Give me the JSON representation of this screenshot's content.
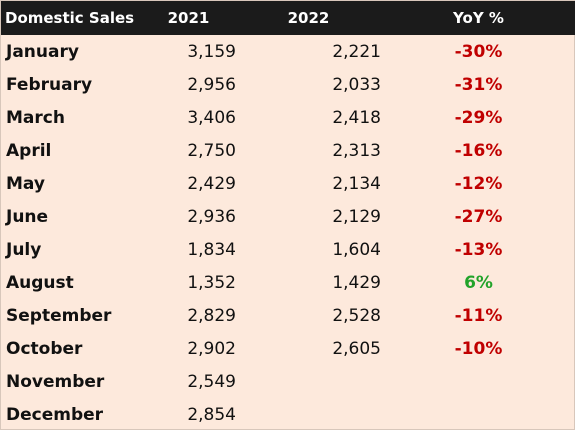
{
  "header": {
    "title": "Domestic Sales",
    "col_2021": "2021",
    "col_2022": "2022",
    "col_yoy": "YoY %"
  },
  "rows": [
    {
      "month": "January",
      "v2021": "3,159",
      "v2022": "2,221",
      "yoy": "-30%",
      "trend": "neg"
    },
    {
      "month": "February",
      "v2021": "2,956",
      "v2022": "2,033",
      "yoy": "-31%",
      "trend": "neg"
    },
    {
      "month": "March",
      "v2021": "3,406",
      "v2022": "2,418",
      "yoy": "-29%",
      "trend": "neg"
    },
    {
      "month": "April",
      "v2021": "2,750",
      "v2022": "2,313",
      "yoy": "-16%",
      "trend": "neg"
    },
    {
      "month": "May",
      "v2021": "2,429",
      "v2022": "2,134",
      "yoy": "-12%",
      "trend": "neg"
    },
    {
      "month": "June",
      "v2021": "2,936",
      "v2022": "2,129",
      "yoy": "-27%",
      "trend": "neg"
    },
    {
      "month": "July",
      "v2021": "1,834",
      "v2022": "1,604",
      "yoy": "-13%",
      "trend": "neg"
    },
    {
      "month": "August",
      "v2021": "1,352",
      "v2022": "1,429",
      "yoy": "6%",
      "trend": "pos"
    },
    {
      "month": "September",
      "v2021": "2,829",
      "v2022": "2,528",
      "yoy": "-11%",
      "trend": "neg"
    },
    {
      "month": "October",
      "v2021": "2,902",
      "v2022": "2,605",
      "yoy": "-10%",
      "trend": "neg"
    },
    {
      "month": "November",
      "v2021": "2,549",
      "v2022": "",
      "yoy": "",
      "trend": ""
    },
    {
      "month": "December",
      "v2021": "2,854",
      "v2022": "",
      "yoy": "",
      "trend": ""
    }
  ],
  "colors": {
    "header_bg": "#1b1b1b",
    "row_bg": "#fde9dc",
    "negative": "#c00000",
    "positive": "#22a32a"
  }
}
